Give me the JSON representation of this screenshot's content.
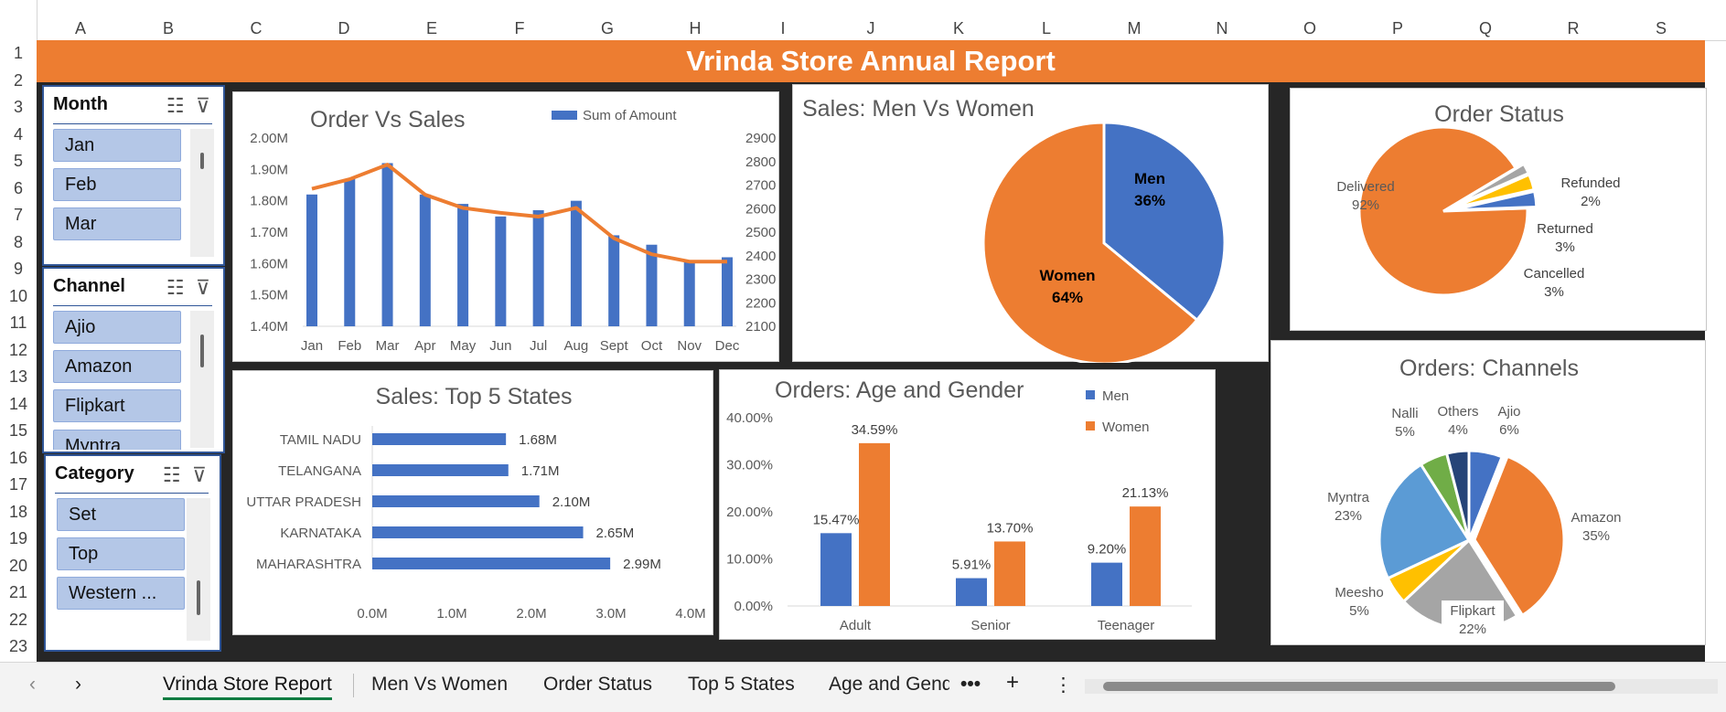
{
  "columns": [
    "A",
    "B",
    "C",
    "D",
    "E",
    "F",
    "G",
    "H",
    "I",
    "J",
    "K",
    "L",
    "M",
    "N",
    "O",
    "P",
    "Q",
    "R",
    "S"
  ],
  "rows": [
    "1",
    "2",
    "3",
    "4",
    "5",
    "6",
    "7",
    "8",
    "9",
    "10",
    "11",
    "12",
    "13",
    "14",
    "15",
    "16",
    "17",
    "18",
    "19",
    "20",
    "21",
    "22",
    "23"
  ],
  "title": "Vrinda Store Annual Report",
  "colors": {
    "orange": "#ED7D31",
    "blue": "#4472C4",
    "dark": "#262626"
  },
  "slicers": {
    "month": {
      "title": "Month",
      "items": [
        "Jan",
        "Feb",
        "Mar"
      ]
    },
    "channel": {
      "title": "Channel",
      "items": [
        "Ajio",
        "Amazon",
        "Flipkart",
        "Myntra"
      ]
    },
    "category": {
      "title": "Category",
      "items": [
        "Set",
        "Top",
        "Western ..."
      ]
    },
    "icons": [
      "multi-select-icon",
      "clear-filter-icon"
    ]
  },
  "charts": {
    "order_vs_sales": {
      "title": "Order Vs Sales",
      "legend": "Sum of Amount",
      "type": "bar+line",
      "categories": [
        "Jan",
        "Feb",
        "Mar",
        "Apr",
        "May",
        "Jun",
        "Jul",
        "Aug",
        "Sept",
        "Oct",
        "Nov",
        "Dec"
      ],
      "left_ticks": [
        "2.00M",
        "1.90M",
        "1.80M",
        "1.70M",
        "1.60M",
        "1.50M",
        "1.40M"
      ],
      "right_ticks": [
        "2900",
        "2800",
        "2700",
        "2600",
        "2500",
        "2400",
        "2300",
        "2200",
        "2100"
      ],
      "bars": [
        1.82,
        1.87,
        1.92,
        1.82,
        1.79,
        1.75,
        1.77,
        1.8,
        1.69,
        1.66,
        1.61,
        1.62
      ],
      "line": [
        2684,
        2725,
        2787,
        2659,
        2603,
        2582,
        2566,
        2603,
        2474,
        2406,
        2375,
        2375
      ]
    },
    "men_vs_women": {
      "title": "Sales: Men Vs Women",
      "type": "pie",
      "slices": [
        {
          "label": "Men",
          "pct": "36%",
          "value": 36
        },
        {
          "label": "Women",
          "pct": "64%",
          "value": 64
        }
      ]
    },
    "order_status": {
      "title": "Order Status",
      "type": "pie",
      "slices": [
        {
          "label": "Delivered",
          "pct": "92%",
          "value": 92
        },
        {
          "label": "Refunded",
          "pct": "2%",
          "value": 2
        },
        {
          "label": "Returned",
          "pct": "3%",
          "value": 3
        },
        {
          "label": "Cancelled",
          "pct": "3%",
          "value": 3
        }
      ]
    },
    "top_states": {
      "title": "Sales: Top 5 States",
      "type": "bar",
      "states": [
        "TAMIL NADU",
        "TELANGANA",
        "UTTAR PRADESH",
        "KARNATAKA",
        "MAHARASHTRA"
      ],
      "values": [
        1.68,
        1.71,
        2.1,
        2.65,
        2.99
      ],
      "labels": [
        "1.68M",
        "1.71M",
        "2.10M",
        "2.65M",
        "2.99M"
      ],
      "ticks": [
        "0.0M",
        "1.0M",
        "2.0M",
        "3.0M",
        "4.0M"
      ]
    },
    "age_gender": {
      "title": "Orders: Age and Gender",
      "type": "bar",
      "categories": [
        "Adult",
        "Senior",
        "Teenager"
      ],
      "series": [
        {
          "name": "Men",
          "values": [
            15.47,
            5.91,
            9.2
          ],
          "labels": [
            "15.47%",
            "5.91%",
            "9.20%"
          ]
        },
        {
          "name": "Women",
          "values": [
            34.59,
            13.7,
            21.13
          ],
          "labels": [
            "34.59%",
            "13.70%",
            "21.13%"
          ]
        }
      ],
      "ticks": [
        "40.00%",
        "30.00%",
        "20.00%",
        "10.00%",
        "0.00%"
      ]
    },
    "channels": {
      "title": "Orders: Channels",
      "type": "pie",
      "slices": [
        {
          "label": "Ajio",
          "pct": "6%",
          "value": 6
        },
        {
          "label": "Amazon",
          "pct": "35%",
          "value": 35
        },
        {
          "label": "Flipkart",
          "pct": "22%",
          "value": 22
        },
        {
          "label": "Meesho",
          "pct": "5%",
          "value": 5
        },
        {
          "label": "Myntra",
          "pct": "23%",
          "value": 23
        },
        {
          "label": "Nalli",
          "pct": "5%",
          "value": 5
        },
        {
          "label": "Others",
          "pct": "4%",
          "value": 4
        }
      ]
    }
  },
  "sheet_tabs": [
    "Vrinda Store Report",
    "Men Vs Women",
    "Order Status",
    "Top 5 States",
    "Age and Gend"
  ]
}
